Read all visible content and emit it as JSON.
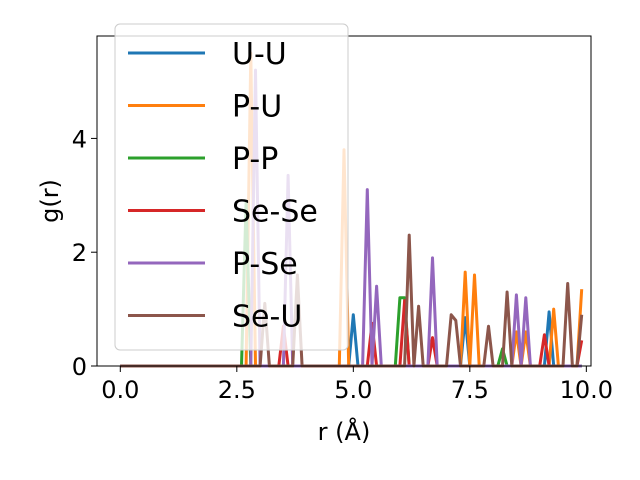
{
  "chart_data": {
    "type": "line",
    "xlabel": "r (Å)",
    "ylabel": "g(r)",
    "xlim": [
      -0.5,
      10.1
    ],
    "ylim": [
      0,
      5.8
    ],
    "xticks": [
      0.0,
      2.5,
      5.0,
      7.5,
      10.0
    ],
    "xtick_labels": [
      "0.0",
      "2.5",
      "5.0",
      "7.5",
      "10.0"
    ],
    "yticks": [
      0,
      2,
      4
    ],
    "ytick_labels": [
      "0",
      "2",
      "4"
    ],
    "grid": false,
    "legend_position": "upper-left",
    "series": [
      {
        "name": "U-U",
        "color": "#1f77b4",
        "x": [
          0,
          4.9,
          5.0,
          5.1,
          7.3,
          7.4,
          7.5,
          9.1,
          9.2,
          9.3,
          9.9
        ],
        "y": [
          0,
          0,
          0.9,
          0,
          0,
          0.85,
          0,
          0,
          0.95,
          0,
          0
        ]
      },
      {
        "name": "P-U",
        "color": "#ff7f0e",
        "x": [
          0,
          2.7,
          2.8,
          2.9,
          4.7,
          4.8,
          4.9,
          7.3,
          7.4,
          7.5,
          7.6,
          7.7,
          8.4,
          8.5,
          8.6,
          8.7,
          8.8,
          9.2,
          9.3,
          9.4,
          9.7,
          9.8,
          9.9
        ],
        "y": [
          0,
          0,
          5.5,
          0,
          0,
          3.8,
          0,
          0,
          1.65,
          0,
          1.6,
          0,
          0,
          0.6,
          0,
          0.6,
          0,
          0,
          1.0,
          0,
          0,
          0,
          1.35
        ]
      },
      {
        "name": "P-P",
        "color": "#2ca02c",
        "x": [
          0,
          2.6,
          2.7,
          2.8,
          5.9,
          6.0,
          6.1,
          6.2,
          8.1,
          8.2,
          8.3,
          9.8,
          9.9
        ],
        "y": [
          0,
          0,
          2.9,
          0,
          0,
          1.2,
          1.2,
          0,
          0,
          0.3,
          0,
          0,
          0
        ]
      },
      {
        "name": "Se-Se",
        "color": "#d62728",
        "x": [
          0,
          3.4,
          3.5,
          3.6,
          5.3,
          5.4,
          5.5,
          6.0,
          6.1,
          6.2,
          6.6,
          6.7,
          6.8,
          9.0,
          9.1,
          9.2,
          9.7,
          9.8,
          9.9
        ],
        "y": [
          0,
          0,
          0.7,
          0,
          0,
          0.75,
          0,
          0,
          1.15,
          0,
          0,
          0.5,
          0,
          0,
          0.55,
          0,
          0,
          0,
          0.45
        ]
      },
      {
        "name": "P-Se",
        "color": "#9467bd",
        "x": [
          0,
          2.8,
          2.9,
          3.0,
          3.5,
          3.6,
          3.7,
          5.2,
          5.3,
          5.4,
          5.5,
          5.6,
          6.6,
          6.7,
          6.8,
          8.4,
          8.5,
          8.6,
          8.7,
          8.8,
          9.9
        ],
        "y": [
          0,
          0,
          5.2,
          0,
          0,
          3.35,
          0,
          0,
          3.1,
          0,
          1.4,
          0,
          0,
          1.9,
          0,
          0,
          1.25,
          0,
          1.2,
          0,
          0
        ]
      },
      {
        "name": "Se-U",
        "color": "#8c564b",
        "x": [
          0,
          3.0,
          3.1,
          3.2,
          3.7,
          3.8,
          3.9,
          6.1,
          6.2,
          6.3,
          6.4,
          6.5,
          7.0,
          7.1,
          7.2,
          7.3,
          7.8,
          7.9,
          8.0,
          8.2,
          8.3,
          8.4,
          9.5,
          9.6,
          9.7,
          9.8,
          9.9
        ],
        "y": [
          0,
          0,
          1.1,
          0,
          0,
          1.6,
          0,
          0,
          2.3,
          0,
          1.05,
          0,
          0,
          0.9,
          0.8,
          0,
          0,
          0.7,
          0,
          0,
          1.3,
          0,
          0,
          1.45,
          0,
          0,
          0.9
        ]
      }
    ]
  }
}
